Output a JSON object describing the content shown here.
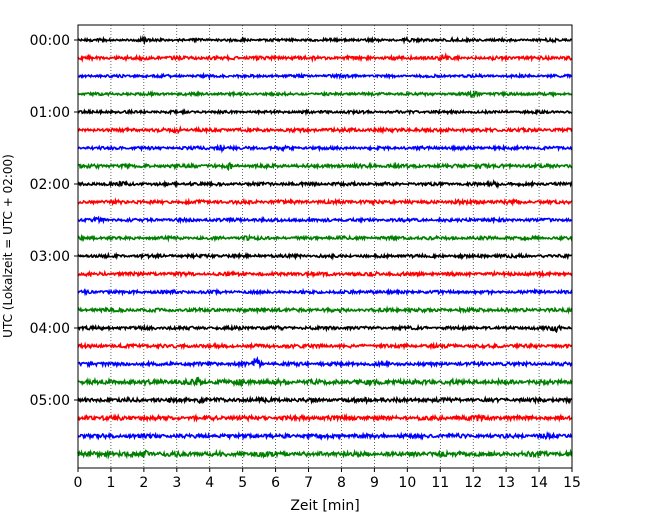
{
  "chart_data": {
    "type": "line",
    "xlabel": "Zeit  [min]",
    "ylabel": "UTC (Lokalzeit = UTC + 02:00)",
    "xlim": [
      0,
      15
    ],
    "x_ticks": [
      0,
      1,
      2,
      3,
      4,
      5,
      6,
      7,
      8,
      9,
      10,
      11,
      12,
      13,
      14,
      15
    ],
    "y_tick_labels": [
      "00:00",
      "01:00",
      "02:00",
      "03:00",
      "04:00",
      "05:00"
    ],
    "traces_per_hour": 4,
    "minutes_per_trace": 15,
    "grid": "vertical-dotted",
    "colors": [
      "#000000",
      "#ff0000",
      "#0000ff",
      "#008000"
    ],
    "traces": [
      {
        "start": "00:00",
        "color": "#000000",
        "amplitude": 0.35,
        "events": [
          [
            2.0,
            1.6
          ],
          [
            10.0,
            1.3
          ],
          [
            11.3,
            1.3
          ],
          [
            14.4,
            1.4
          ]
        ]
      },
      {
        "start": "00:15",
        "color": "#ff0000",
        "amplitude": 0.45,
        "events": [
          [
            11.1,
            1.6
          ],
          [
            2.0,
            1.1
          ]
        ]
      },
      {
        "start": "00:30",
        "color": "#0000ff",
        "amplitude": 0.35,
        "events": [
          [
            3.9,
            1.2
          ]
        ]
      },
      {
        "start": "00:45",
        "color": "#008000",
        "amplitude": 0.35,
        "events": [
          [
            12.0,
            2.0
          ]
        ]
      },
      {
        "start": "01:00",
        "color": "#000000",
        "amplitude": 0.35,
        "events": [
          [
            1.0,
            1.2
          ]
        ]
      },
      {
        "start": "01:15",
        "color": "#ff0000",
        "amplitude": 0.45,
        "events": [
          [
            3.0,
            1.5
          ],
          [
            11.0,
            1.2
          ]
        ]
      },
      {
        "start": "01:30",
        "color": "#0000ff",
        "amplitude": 0.4,
        "events": [
          [
            4.3,
            1.8
          ],
          [
            6.3,
            1.3
          ]
        ]
      },
      {
        "start": "01:45",
        "color": "#008000",
        "amplitude": 0.45,
        "events": [
          [
            4.6,
            1.6
          ],
          [
            12.2,
            1.3
          ]
        ]
      },
      {
        "start": "02:00",
        "color": "#000000",
        "amplitude": 0.4,
        "events": [
          [
            1.3,
            1.4
          ],
          [
            12.7,
            1.5
          ],
          [
            3.4,
            1.2
          ]
        ]
      },
      {
        "start": "02:15",
        "color": "#ff0000",
        "amplitude": 0.45,
        "events": [
          [
            1.3,
            1.1
          ],
          [
            11.5,
            1.2
          ]
        ]
      },
      {
        "start": "02:30",
        "color": "#0000ff",
        "amplitude": 0.4,
        "events": [
          [
            0.6,
            1.4
          ],
          [
            5.2,
            1.2
          ]
        ]
      },
      {
        "start": "02:45",
        "color": "#008000",
        "amplitude": 0.4,
        "events": [
          [
            5.1,
            1.3
          ],
          [
            8.0,
            1.2
          ],
          [
            13.1,
            1.2
          ]
        ]
      },
      {
        "start": "03:00",
        "color": "#000000",
        "amplitude": 0.4,
        "events": [
          [
            5.1,
            1.2
          ],
          [
            13.5,
            1.2
          ]
        ]
      },
      {
        "start": "03:15",
        "color": "#ff0000",
        "amplitude": 0.45,
        "events": [
          [
            9.0,
            1.4
          ]
        ]
      },
      {
        "start": "03:30",
        "color": "#0000ff",
        "amplitude": 0.4,
        "events": [
          [
            8.9,
            1.3
          ],
          [
            14.0,
            1.3
          ]
        ]
      },
      {
        "start": "03:45",
        "color": "#008000",
        "amplitude": 0.45,
        "events": [
          [
            8.0,
            1.2
          ]
        ]
      },
      {
        "start": "04:00",
        "color": "#000000",
        "amplitude": 0.4,
        "events": [
          [
            14.5,
            1.9
          ],
          [
            6.0,
            1.2
          ]
        ]
      },
      {
        "start": "04:15",
        "color": "#ff0000",
        "amplitude": 0.45,
        "events": [
          [
            6.5,
            1.2
          ]
        ]
      },
      {
        "start": "04:30",
        "color": "#0000ff",
        "amplitude": 0.45,
        "events": [
          [
            5.4,
            2.4
          ],
          [
            0.4,
            1.4
          ]
        ]
      },
      {
        "start": "04:45",
        "color": "#008000",
        "amplitude": 0.6,
        "events": [
          [
            3.6,
            1.8
          ],
          [
            4.9,
            1.3
          ]
        ]
      },
      {
        "start": "05:00",
        "color": "#000000",
        "amplitude": 0.5,
        "events": [
          [
            3.7,
            1.4
          ],
          [
            8.8,
            1.3
          ]
        ]
      },
      {
        "start": "05:15",
        "color": "#ff0000",
        "amplitude": 0.55,
        "events": [
          [
            12.2,
            1.4
          ],
          [
            0.3,
            1.3
          ],
          [
            7.9,
            1.2
          ]
        ]
      },
      {
        "start": "05:30",
        "color": "#0000ff",
        "amplitude": 0.5,
        "events": [
          [
            14.2,
            1.3
          ]
        ]
      },
      {
        "start": "05:45",
        "color": "#008000",
        "amplitude": 0.6,
        "events": [
          [
            2.0,
            2.0
          ],
          [
            0.9,
            1.4
          ],
          [
            14.9,
            1.5
          ]
        ]
      }
    ]
  }
}
